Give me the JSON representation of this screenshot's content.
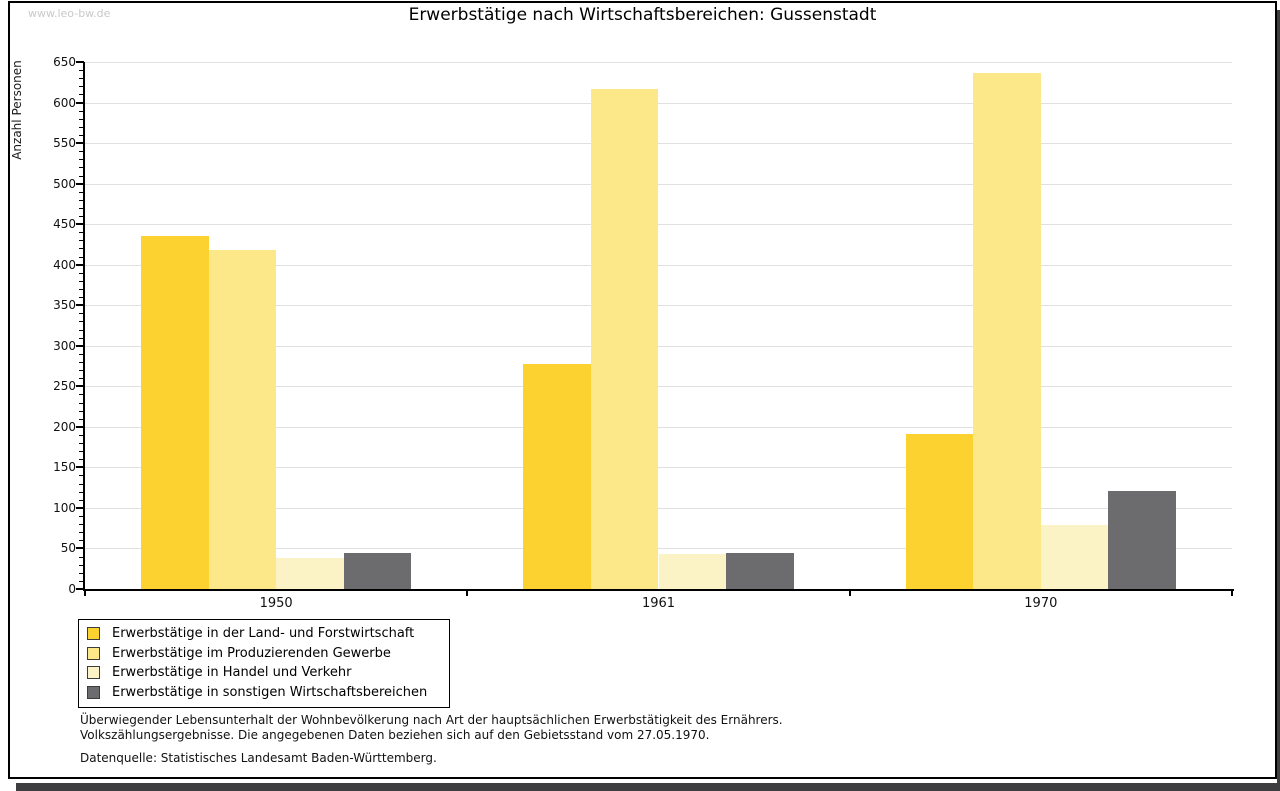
{
  "page": {
    "watermark": "www.leo-bw.de",
    "title": "Erwerbstätige nach Wirtschaftsbereichen: Gussenstadt"
  },
  "chart_data": {
    "type": "bar",
    "title": "Erwerbstätige nach Wirtschaftsbereichen: Gussenstadt",
    "ylabel": "Anzahl Personen",
    "xlabel": "",
    "categories": [
      "1950",
      "1961",
      "1970"
    ],
    "series": [
      {
        "name": "Erwerbstätige in der Land- und Forstwirtschaft",
        "color": "#fcd230",
        "values": [
          436,
          278,
          191
        ]
      },
      {
        "name": "Erwerbstätige im Produzierenden Gewerbe",
        "color": "#fce888",
        "values": [
          418,
          617,
          637
        ]
      },
      {
        "name": "Erwerbstätige in Handel und Verkehr",
        "color": "#fbf3c6",
        "values": [
          38,
          43,
          79
        ]
      },
      {
        "name": "Erwerbstätige in sonstigen Wirtschaftsbereichen",
        "color": "#6c6c6e",
        "values": [
          44,
          45,
          121
        ]
      }
    ],
    "ylim": [
      0,
      650
    ],
    "ytick_step": 50,
    "ytick_minor_step": 10,
    "grid": true,
    "legend_position": "bottom-left",
    "gridline_color": "#e0e0e0"
  },
  "footnotes": {
    "line1": "Überwiegender Lebensunterhalt der Wohnbevölkerung nach Art der hauptsächlichen Erwerbstätigkeit des Ernährers.",
    "line2": "Volkszählungsergebnisse. Die angegebenen Daten beziehen sich auf den Gebietsstand vom 27.05.1970.",
    "source": "Datenquelle: Statistisches Landesamt Baden-Württemberg."
  }
}
